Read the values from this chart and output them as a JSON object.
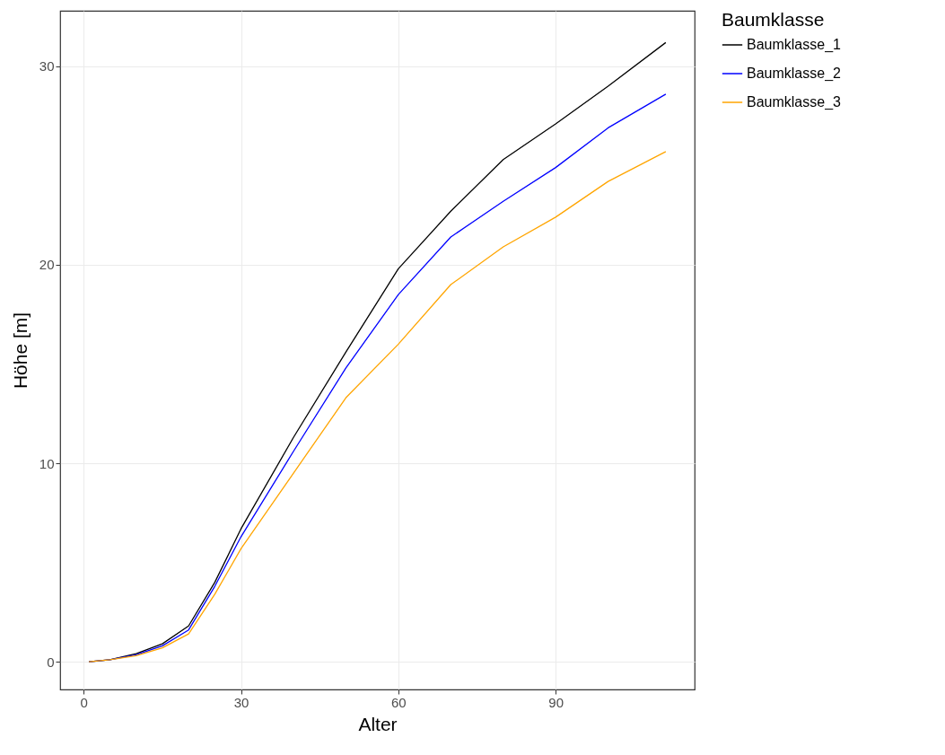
{
  "chart_data": {
    "type": "line",
    "xlabel": "Alter",
    "ylabel": "Höhe [m]",
    "legend_title": "Baumklasse",
    "legend": "right",
    "grid": true,
    "line_style": "solid",
    "xlim": [
      -4.5,
      116.5
    ],
    "xticks": [
      0,
      30,
      60,
      90
    ],
    "ylim": [
      -1.4,
      32.8
    ],
    "yticks": [
      0,
      10,
      20,
      30
    ],
    "x": [
      1,
      5,
      10,
      15,
      20,
      25,
      30,
      40,
      50,
      60,
      70,
      80,
      90,
      100,
      111
    ],
    "series": [
      {
        "name": "Baumklasse_1",
        "color": "#000000",
        "values": [
          0,
          0.1,
          0.4,
          0.9,
          1.8,
          4.0,
          6.7,
          11.3,
          15.6,
          19.8,
          22.7,
          25.3,
          27.1,
          29.0,
          31.2
        ]
      },
      {
        "name": "Baumklasse_2",
        "color": "#0000ff",
        "values": [
          0,
          0.1,
          0.35,
          0.8,
          1.6,
          3.8,
          6.3,
          10.6,
          14.8,
          18.5,
          21.4,
          23.2,
          24.9,
          26.9,
          28.6
        ]
      },
      {
        "name": "Baumklasse_3",
        "color": "#ffa500",
        "values": [
          0,
          0.1,
          0.3,
          0.7,
          1.4,
          3.4,
          5.7,
          9.5,
          13.3,
          16.0,
          19.0,
          20.9,
          22.4,
          24.2,
          25.7
        ]
      }
    ]
  }
}
